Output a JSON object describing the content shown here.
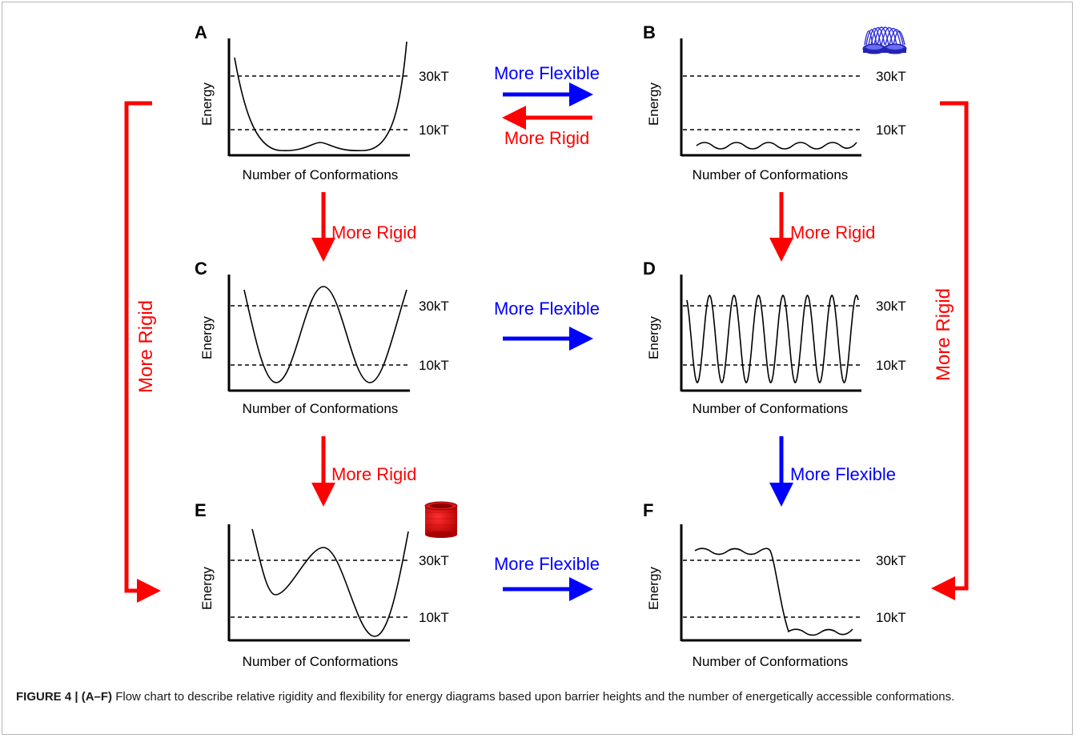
{
  "figure": {
    "panels": [
      {
        "id": "A",
        "letter": "A",
        "xlabel": "Number of Conformations",
        "ylabel": "Energy",
        "ref_high": "30kT",
        "ref_low": "10kT"
      },
      {
        "id": "B",
        "letter": "B",
        "xlabel": "Number of Conformations",
        "ylabel": "Energy",
        "ref_high": "30kT",
        "ref_low": "10kT"
      },
      {
        "id": "C",
        "letter": "C",
        "xlabel": "Number of Conformations",
        "ylabel": "Energy",
        "ref_high": "30kT",
        "ref_low": "10kT"
      },
      {
        "id": "D",
        "letter": "D",
        "xlabel": "Number of Conformations",
        "ylabel": "Energy",
        "ref_high": "30kT",
        "ref_low": "10kT"
      },
      {
        "id": "E",
        "letter": "E",
        "xlabel": "Number of Conformations",
        "ylabel": "Energy",
        "ref_high": "30kT",
        "ref_low": "10kT"
      },
      {
        "id": "F",
        "letter": "F",
        "xlabel": "Number of Conformations",
        "ylabel": "Energy",
        "ref_high": "30kT",
        "ref_low": "10kT"
      }
    ],
    "arrows": {
      "a_to_b": "More Flexible",
      "b_to_a": "More Rigid",
      "a_to_c": "More Rigid",
      "b_to_d": "More Rigid",
      "c_to_d": "More Flexible",
      "c_to_e": "More Rigid",
      "d_to_f": "More Flexible",
      "e_to_f": "More Flexible",
      "a_to_e_left": "More Rigid",
      "b_to_f_right": "More Rigid"
    },
    "colors": {
      "flexible": "#0000ff",
      "rigid": "#ff0000",
      "curve": "#000000",
      "spring_blue": "#2d2dd6",
      "spring_red": "#e01010"
    },
    "icons": {
      "panel_b": "slinky-spring-icon",
      "panel_e": "compressed-spring-icon"
    }
  },
  "caption": {
    "label": "FIGURE 4 | (A–F)",
    "text": " Flow chart to describe relative rigidity and flexibility for energy diagrams based upon barrier heights and the number of energetically accessible conformations."
  }
}
